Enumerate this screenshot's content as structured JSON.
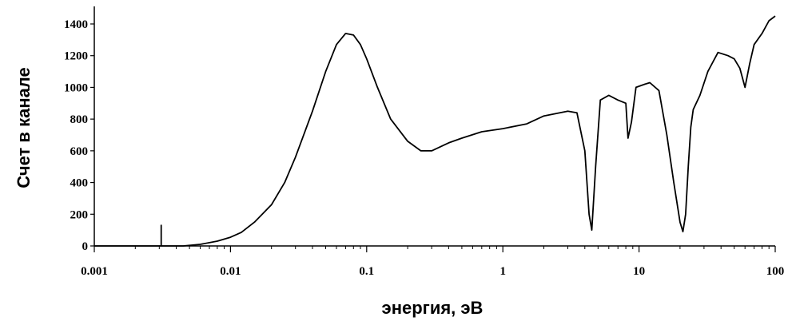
{
  "chart_data": {
    "type": "line",
    "title": "",
    "xlabel": "энергия, эВ",
    "ylabel": "Счет в канале",
    "x_scale": "log",
    "xlim": [
      0.001,
      100
    ],
    "ylim": [
      0,
      1400
    ],
    "x_tick_labels": [
      "0.001",
      "0.01",
      "0.1",
      "1",
      "10",
      "100"
    ],
    "y_tick_labels": [
      "0",
      "200",
      "400",
      "600",
      "800",
      "1000",
      "1200",
      "1400"
    ],
    "grid": false,
    "legend": "none",
    "line_color": "#000000",
    "series": [
      {
        "x": [
          0.001,
          0.0031,
          0.0031,
          0.0031,
          0.0045,
          0.006,
          0.008,
          0.01,
          0.012,
          0.015,
          0.02,
          0.025,
          0.03,
          0.04,
          0.05,
          0.06,
          0.07,
          0.08,
          0.09,
          0.1,
          0.12,
          0.15,
          0.2,
          0.25,
          0.3,
          0.4,
          0.5,
          0.7,
          1.0,
          1.5,
          2.0,
          3.0,
          3.5,
          4.0,
          4.3,
          4.5,
          4.8,
          5.2,
          6.0,
          7.0,
          8.0,
          8.3,
          8.8,
          9.5,
          11,
          12,
          14,
          16,
          18,
          20,
          21,
          22,
          23,
          24,
          25,
          28,
          32,
          38,
          45,
          50,
          55,
          60,
          65,
          70,
          80,
          90,
          100
        ],
        "y": [
          0,
          0,
          130,
          0,
          0,
          10,
          30,
          55,
          85,
          150,
          260,
          400,
          560,
          850,
          1100,
          1270,
          1340,
          1330,
          1270,
          1180,
          1000,
          800,
          660,
          600,
          600,
          650,
          680,
          720,
          740,
          770,
          820,
          850,
          840,
          600,
          200,
          100,
          500,
          920,
          950,
          920,
          900,
          680,
          780,
          1000,
          1020,
          1030,
          980,
          700,
          400,
          150,
          90,
          200,
          500,
          750,
          860,
          950,
          1100,
          1220,
          1200,
          1180,
          1120,
          1000,
          1150,
          1270,
          1340,
          1420,
          1450
        ]
      }
    ]
  }
}
